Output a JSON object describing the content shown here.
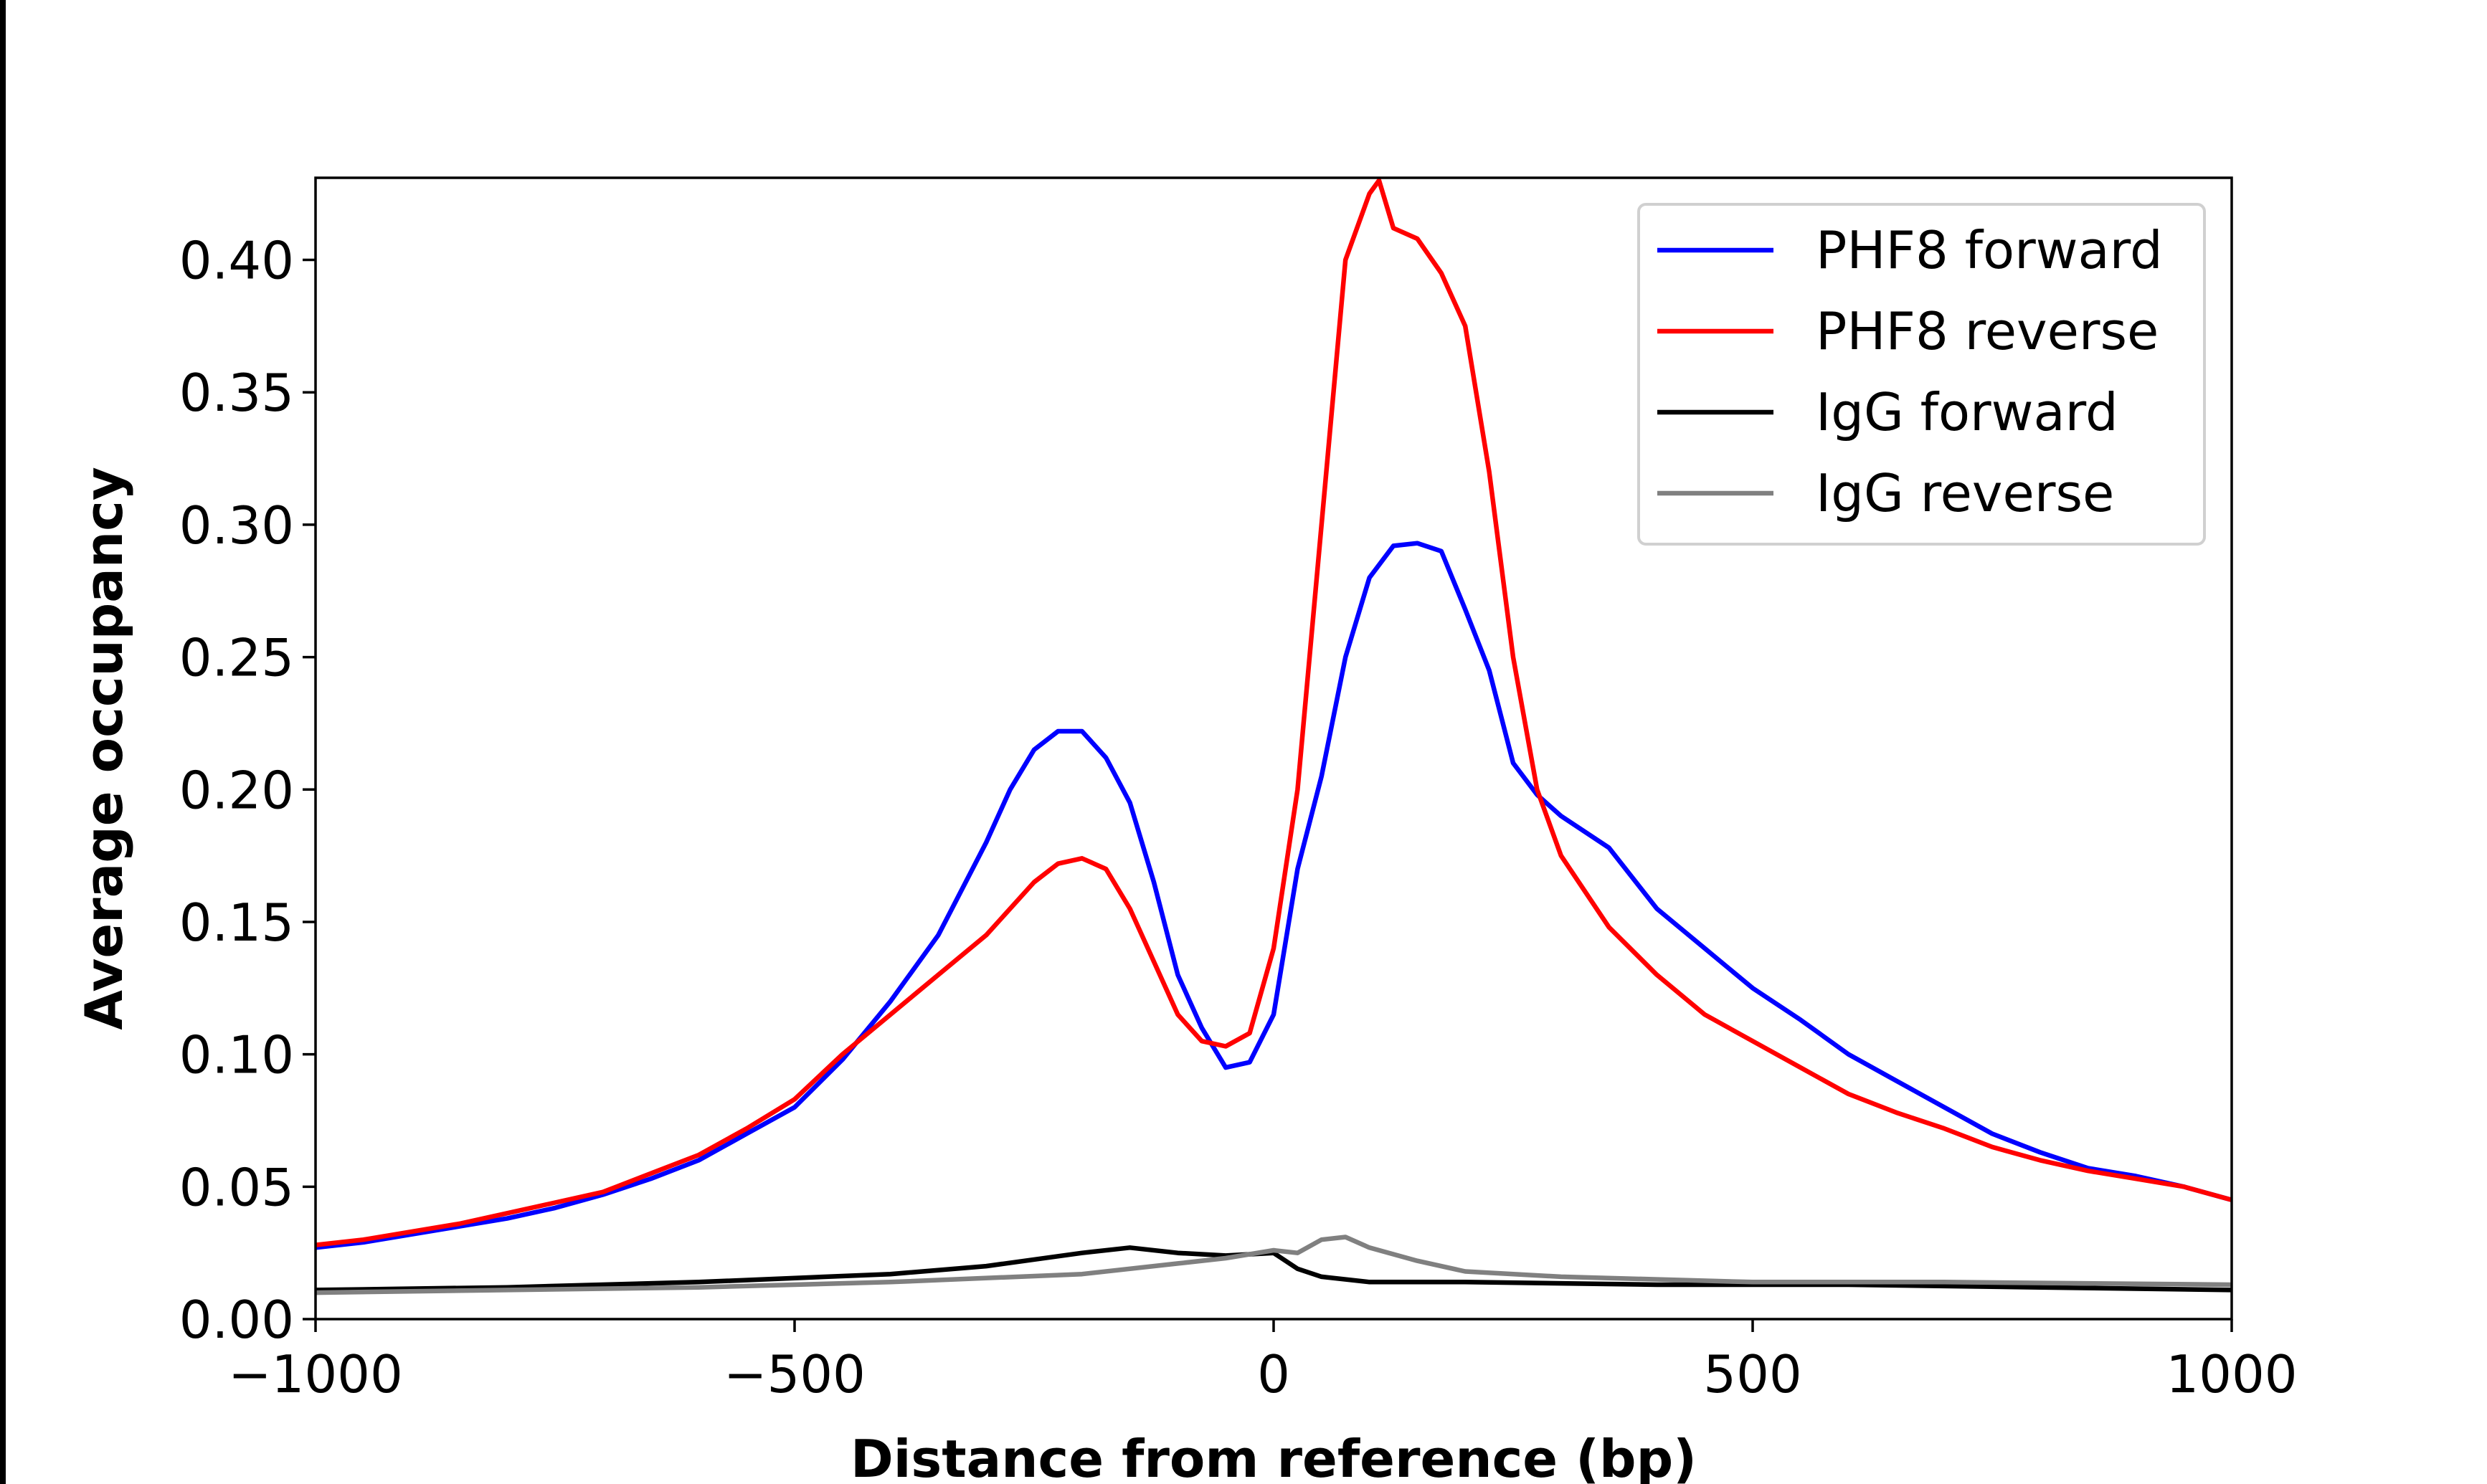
{
  "chart_data": {
    "type": "line",
    "title": "",
    "xlabel": "Distance from reference (bp)",
    "ylabel": "Average occupancy",
    "xlim": [
      -1000,
      1000
    ],
    "ylim": [
      0,
      0.431
    ],
    "xticks": [
      -1000,
      -500,
      0,
      500,
      1000
    ],
    "xtick_labels": [
      "−1000",
      "−500",
      "0",
      "500",
      "1000"
    ],
    "yticks": [
      0,
      0.05,
      0.1,
      0.15,
      0.2,
      0.25,
      0.3,
      0.35,
      0.4
    ],
    "ytick_labels": [
      "0.00",
      "0.05",
      "0.10",
      "0.15",
      "0.20",
      "0.25",
      "0.30",
      "0.35",
      "0.40"
    ],
    "grid": false,
    "legend_position": "top-right",
    "series": [
      {
        "name": "PHF8 forward",
        "color": "#0000ff",
        "x": [
          -1000,
          -950,
          -900,
          -850,
          -800,
          -750,
          -700,
          -650,
          -600,
          -550,
          -500,
          -450,
          -400,
          -350,
          -300,
          -275,
          -250,
          -225,
          -200,
          -175,
          -150,
          -125,
          -100,
          -75,
          -50,
          -25,
          0,
          25,
          50,
          75,
          100,
          125,
          150,
          175,
          200,
          225,
          250,
          275,
          300,
          350,
          400,
          450,
          500,
          550,
          600,
          650,
          700,
          750,
          800,
          850,
          900,
          950,
          1000
        ],
        "y": [
          0.027,
          0.029,
          0.032,
          0.035,
          0.038,
          0.042,
          0.047,
          0.053,
          0.06,
          0.07,
          0.08,
          0.098,
          0.12,
          0.145,
          0.18,
          0.2,
          0.215,
          0.222,
          0.222,
          0.212,
          0.195,
          0.165,
          0.13,
          0.11,
          0.095,
          0.097,
          0.115,
          0.17,
          0.205,
          0.25,
          0.28,
          0.292,
          0.293,
          0.29,
          0.268,
          0.245,
          0.21,
          0.198,
          0.19,
          0.178,
          0.155,
          0.14,
          0.125,
          0.113,
          0.1,
          0.09,
          0.08,
          0.07,
          0.063,
          0.057,
          0.054,
          0.05,
          0.045
        ]
      },
      {
        "name": "PHF8 reverse",
        "color": "#ff0000",
        "x": [
          -1000,
          -950,
          -900,
          -850,
          -800,
          -750,
          -700,
          -650,
          -600,
          -550,
          -500,
          -450,
          -400,
          -350,
          -300,
          -250,
          -225,
          -200,
          -175,
          -150,
          -125,
          -100,
          -75,
          -50,
          -25,
          0,
          25,
          50,
          75,
          100,
          110,
          125,
          150,
          175,
          200,
          225,
          250,
          275,
          300,
          350,
          400,
          450,
          500,
          550,
          600,
          650,
          700,
          750,
          800,
          850,
          900,
          950,
          1000
        ],
        "y": [
          0.028,
          0.03,
          0.033,
          0.036,
          0.04,
          0.044,
          0.048,
          0.055,
          0.062,
          0.072,
          0.083,
          0.1,
          0.115,
          0.13,
          0.145,
          0.165,
          0.172,
          0.174,
          0.17,
          0.155,
          0.135,
          0.115,
          0.105,
          0.103,
          0.108,
          0.14,
          0.2,
          0.3,
          0.4,
          0.425,
          0.43,
          0.412,
          0.408,
          0.395,
          0.375,
          0.32,
          0.25,
          0.2,
          0.175,
          0.148,
          0.13,
          0.115,
          0.105,
          0.095,
          0.085,
          0.078,
          0.072,
          0.065,
          0.06,
          0.056,
          0.053,
          0.05,
          0.045
        ]
      },
      {
        "name": "IgG forward",
        "color": "#000000",
        "x": [
          -1000,
          -800,
          -600,
          -400,
          -300,
          -200,
          -150,
          -100,
          -50,
          0,
          25,
          50,
          100,
          200,
          400,
          600,
          800,
          1000
        ],
        "y": [
          0.011,
          0.012,
          0.014,
          0.017,
          0.02,
          0.025,
          0.027,
          0.025,
          0.024,
          0.025,
          0.019,
          0.016,
          0.014,
          0.014,
          0.013,
          0.013,
          0.012,
          0.011
        ]
      },
      {
        "name": "IgG reverse",
        "color": "#808080",
        "x": [
          -1000,
          -800,
          -600,
          -400,
          -200,
          -100,
          -50,
          0,
          25,
          50,
          75,
          100,
          150,
          200,
          300,
          500,
          700,
          1000
        ],
        "y": [
          0.01,
          0.011,
          0.012,
          0.014,
          0.017,
          0.021,
          0.023,
          0.026,
          0.025,
          0.03,
          0.031,
          0.027,
          0.022,
          0.018,
          0.016,
          0.014,
          0.014,
          0.013
        ]
      }
    ]
  }
}
